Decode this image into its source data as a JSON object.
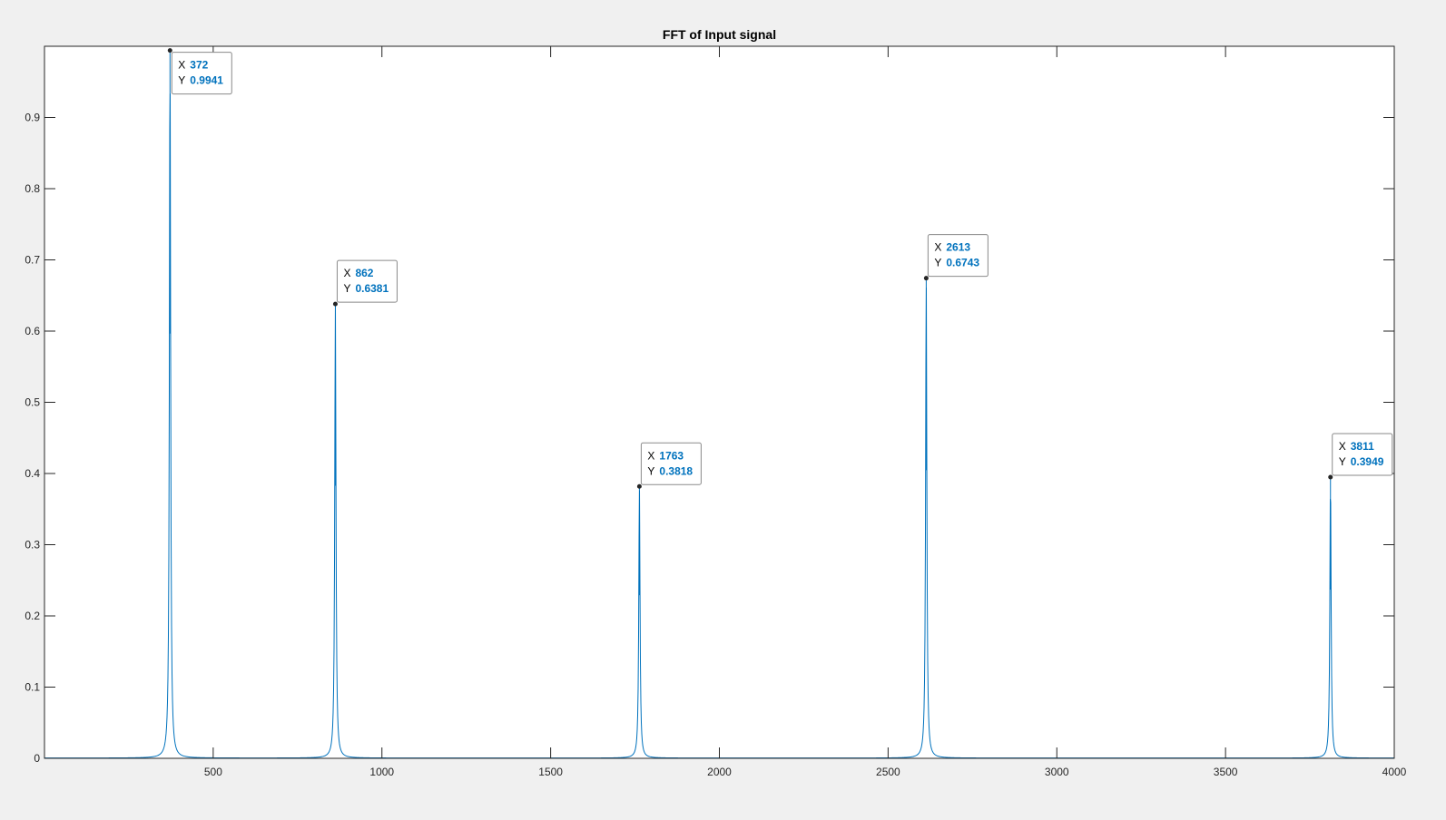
{
  "chart_data": {
    "type": "line",
    "title": "FFT of Input signal",
    "xlabel": "",
    "ylabel": "",
    "xlim": [
      0,
      4000
    ],
    "ylim": [
      0,
      1
    ],
    "x_ticks": [
      500,
      1000,
      1500,
      2000,
      2500,
      3000,
      3500,
      4000
    ],
    "y_ticks": [
      0,
      0.1,
      0.2,
      0.3,
      0.4,
      0.5,
      0.6,
      0.7,
      0.8,
      0.9
    ],
    "grid": false,
    "line_color": "#0072bd",
    "peaks": [
      {
        "x": 372,
        "y": 0.9941
      },
      {
        "x": 862,
        "y": 0.6381
      },
      {
        "x": 1763,
        "y": 0.3818
      },
      {
        "x": 2613,
        "y": 0.6743
      },
      {
        "x": 3811,
        "y": 0.3949
      }
    ],
    "datatips": [
      {
        "x_label": "X",
        "x_value": "372",
        "y_label": "Y",
        "y_value": "0.9941"
      },
      {
        "x_label": "X",
        "x_value": "862",
        "y_label": "Y",
        "y_value": "0.6381"
      },
      {
        "x_label": "X",
        "x_value": "1763",
        "y_label": "Y",
        "y_value": "0.3818"
      },
      {
        "x_label": "X",
        "x_value": "2613",
        "y_label": "Y",
        "y_value": "0.6743"
      },
      {
        "x_label": "X",
        "x_value": "3811",
        "y_label": "Y",
        "y_value": "0.3949"
      }
    ]
  }
}
